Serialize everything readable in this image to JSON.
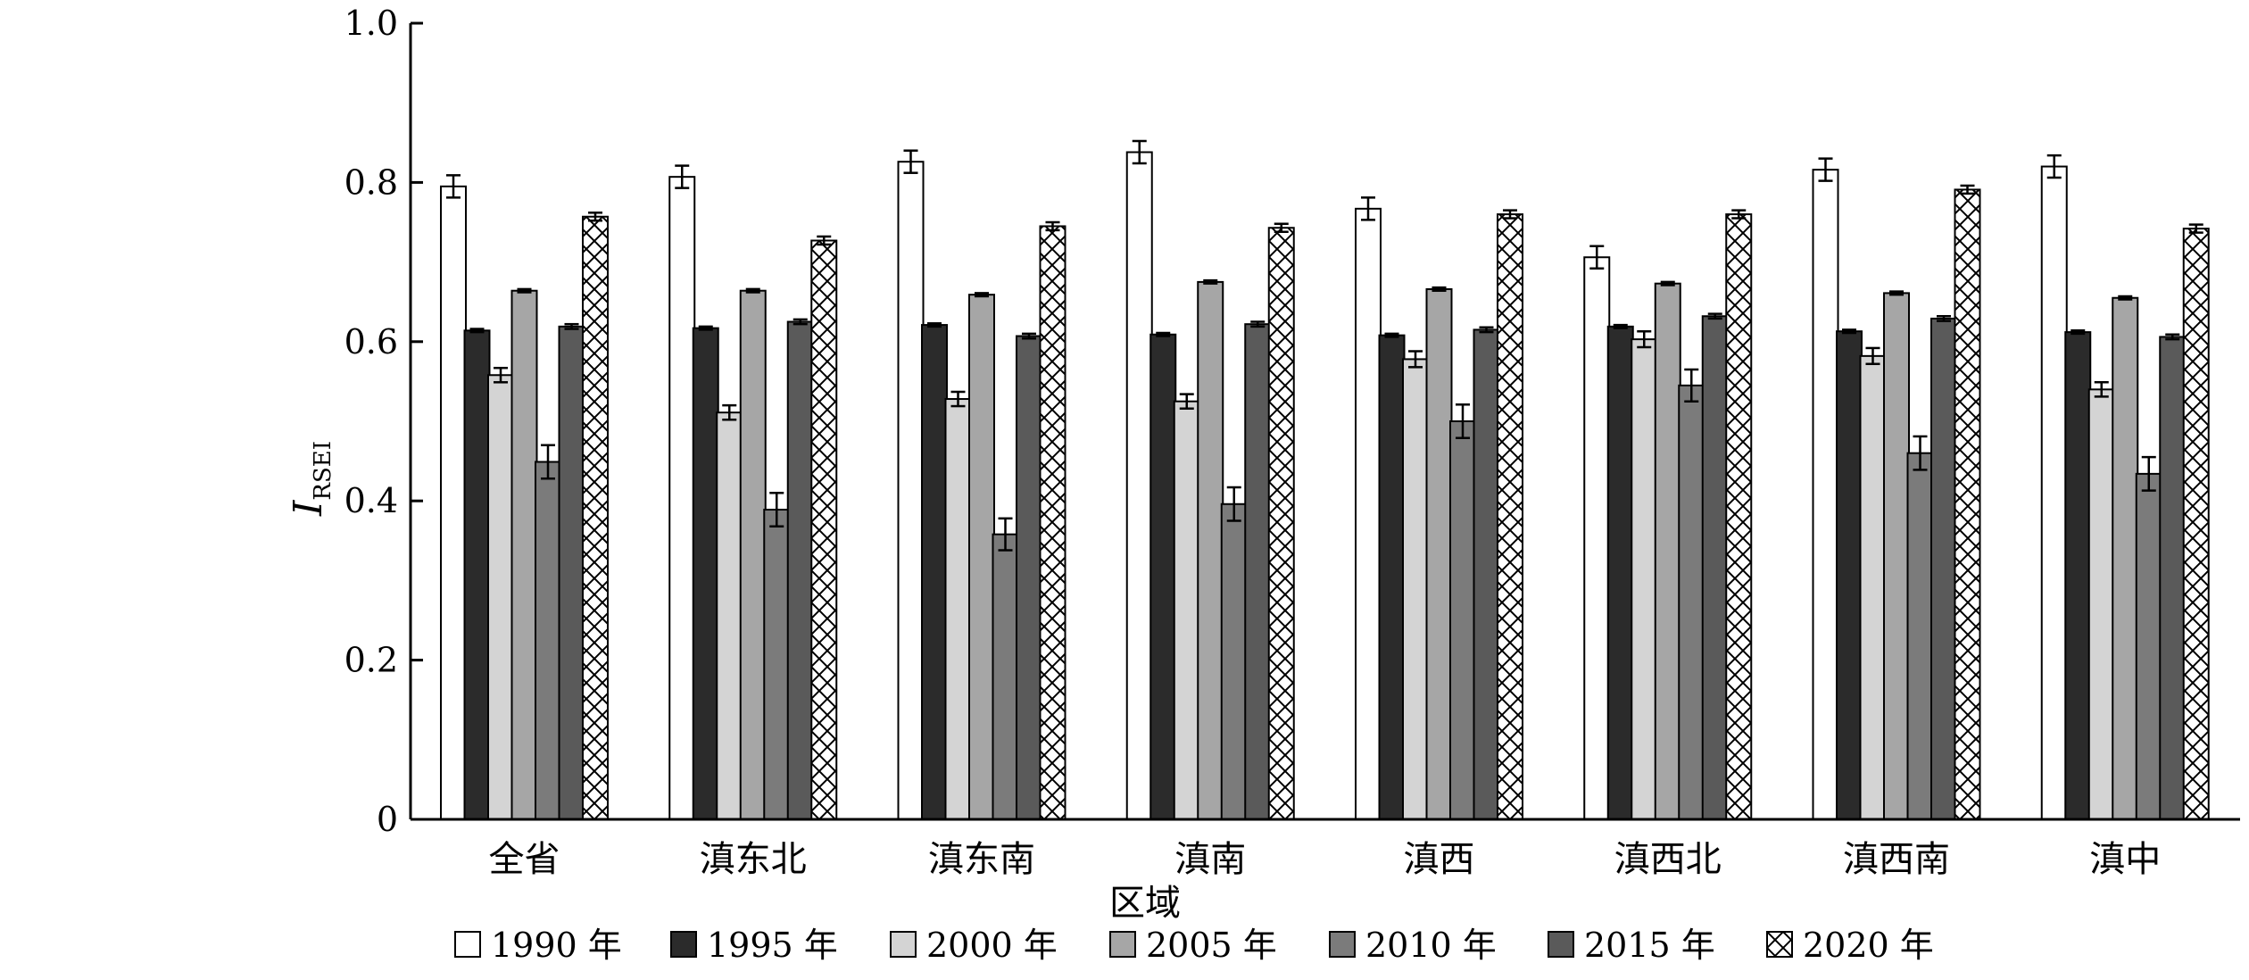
{
  "chart_data": {
    "type": "bar",
    "xlabel": "区域",
    "ylabel_main": "I",
    "ylabel_sub": "RSEI",
    "ylim": [
      0,
      1.0
    ],
    "yticks": [
      "0",
      "0.2",
      "0.4",
      "0.6",
      "0.8",
      "1.0"
    ],
    "ytick_values": [
      0,
      0.2,
      0.4,
      0.6,
      0.8,
      1.0
    ],
    "grid": false,
    "legend_position": "bottom",
    "categories": [
      "全省",
      "滇东北",
      "滇东南",
      "滇南",
      "滇西",
      "滇西北",
      "滇西南",
      "滇中"
    ],
    "series": [
      {
        "name": "1990 年",
        "fill": "#ffffff",
        "pattern": "none",
        "values": [
          0.795,
          0.807,
          0.826,
          0.838,
          0.767,
          0.706,
          0.816,
          0.82
        ],
        "errors": [
          0.014,
          0.014,
          0.014,
          0.014,
          0.014,
          0.014,
          0.014,
          0.014
        ]
      },
      {
        "name": "1995 年",
        "fill": "#2b2b2b",
        "pattern": "none",
        "values": [
          0.614,
          0.617,
          0.621,
          0.609,
          0.608,
          0.619,
          0.613,
          0.612
        ],
        "errors": [
          0.002,
          0.002,
          0.002,
          0.002,
          0.002,
          0.002,
          0.002,
          0.002
        ]
      },
      {
        "name": "2000 年",
        "fill": "#d4d4d4",
        "pattern": "none",
        "values": [
          0.558,
          0.511,
          0.528,
          0.525,
          0.578,
          0.603,
          0.582,
          0.54
        ],
        "errors": [
          0.009,
          0.009,
          0.009,
          0.009,
          0.01,
          0.01,
          0.01,
          0.009
        ]
      },
      {
        "name": "2005 年",
        "fill": "#a6a6a6",
        "pattern": "none",
        "values": [
          0.664,
          0.664,
          0.659,
          0.675,
          0.666,
          0.673,
          0.661,
          0.655
        ],
        "errors": [
          0.002,
          0.002,
          0.002,
          0.002,
          0.002,
          0.002,
          0.002,
          0.002
        ]
      },
      {
        "name": "2010 年",
        "fill": "#7b7b7b",
        "pattern": "none",
        "values": [
          0.449,
          0.389,
          0.358,
          0.396,
          0.5,
          0.545,
          0.46,
          0.434
        ],
        "errors": [
          0.021,
          0.021,
          0.02,
          0.021,
          0.021,
          0.02,
          0.021,
          0.021
        ]
      },
      {
        "name": "2015 年",
        "fill": "#5a5a5a",
        "pattern": "none",
        "values": [
          0.619,
          0.625,
          0.607,
          0.622,
          0.615,
          0.632,
          0.629,
          0.606
        ],
        "errors": [
          0.003,
          0.003,
          0.003,
          0.003,
          0.003,
          0.003,
          0.003,
          0.003
        ]
      },
      {
        "name": "2020 年",
        "fill": "#ffffff",
        "pattern": "crosshatch",
        "values": [
          0.757,
          0.727,
          0.745,
          0.743,
          0.76,
          0.76,
          0.791,
          0.742
        ],
        "errors": [
          0.005,
          0.005,
          0.005,
          0.005,
          0.005,
          0.005,
          0.005,
          0.005
        ]
      }
    ]
  }
}
